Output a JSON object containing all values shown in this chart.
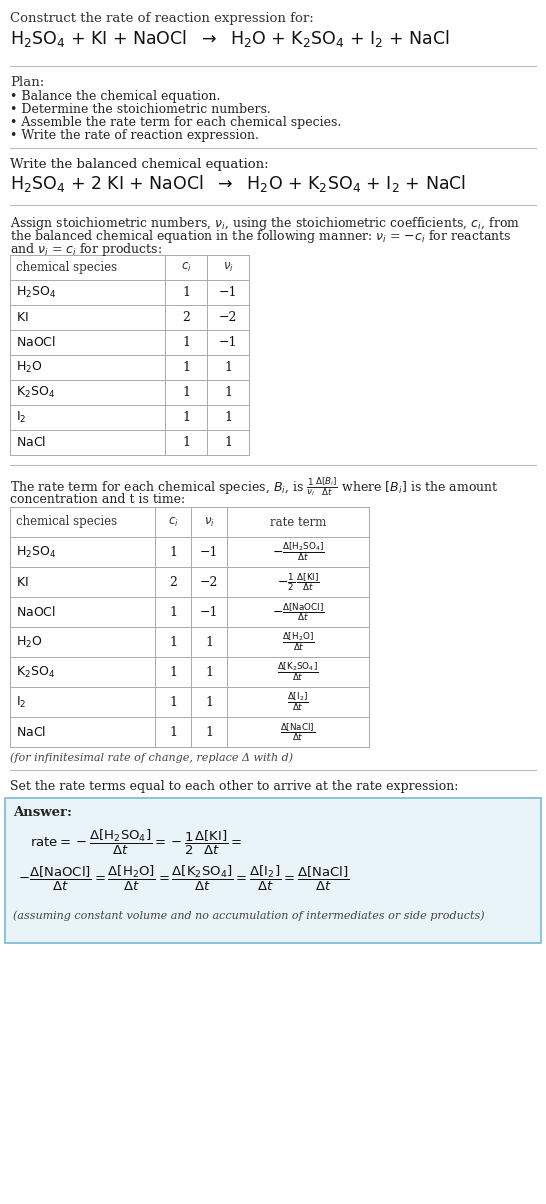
{
  "bg_color": "#ffffff",
  "title_line1": "Construct the rate of reaction expression for:",
  "plan_header": "Plan:",
  "plan_items": [
    "Balance the chemical equation.",
    "Determine the stoichiometric numbers.",
    "Assemble the rate term for each chemical species.",
    "Write the rate of reaction expression."
  ],
  "balanced_header": "Write the balanced chemical equation:",
  "stoich_intro_1": "Assign stoichiometric numbers, ",
  "stoich_intro_2": ", using the stoichiometric coefficients, ",
  "stoich_intro_3": ", from",
  "stoich_intro_4": "the balanced chemical equation in the following manner: ",
  "stoich_intro_5": " = −",
  "stoich_intro_6": " for reactants",
  "stoich_intro_7": "and ",
  "stoich_intro_8": " = ",
  "stoich_intro_9": " for products:",
  "table1_data": [
    [
      "H_2SO_4",
      "1",
      "−1"
    ],
    [
      "KI",
      "2",
      "−2"
    ],
    [
      "NaOCl",
      "1",
      "−1"
    ],
    [
      "H_2O",
      "1",
      "1"
    ],
    [
      "K_2SO_4",
      "1",
      "1"
    ],
    [
      "I_2",
      "1",
      "1"
    ],
    [
      "NaCl",
      "1",
      "1"
    ]
  ],
  "table2_data": [
    [
      "H_2SO_4",
      "1",
      "−1"
    ],
    [
      "KI",
      "2",
      "−2"
    ],
    [
      "NaOCl",
      "1",
      "−1"
    ],
    [
      "H_2O",
      "1",
      "1"
    ],
    [
      "K_2SO_4",
      "1",
      "1"
    ],
    [
      "I_2",
      "1",
      "1"
    ],
    [
      "NaCl",
      "1",
      "1"
    ]
  ],
  "infinitesimal_note": "(for infinitesimal rate of change, replace Δ with d)",
  "set_rate_text": "Set the rate terms equal to each other to arrive at the rate expression:",
  "answer_label": "Answer:",
  "answer_box_color": "#e8f4f8",
  "answer_box_border": "#7ab8d4",
  "footnote": "(assuming constant volume and no accumulation of intermediates or side products)",
  "font_family": "DejaVu Serif",
  "sep_color": "#bbbbbb",
  "table_line_color": "#aaaaaa",
  "text_color": "#111111",
  "label_color": "#444444"
}
